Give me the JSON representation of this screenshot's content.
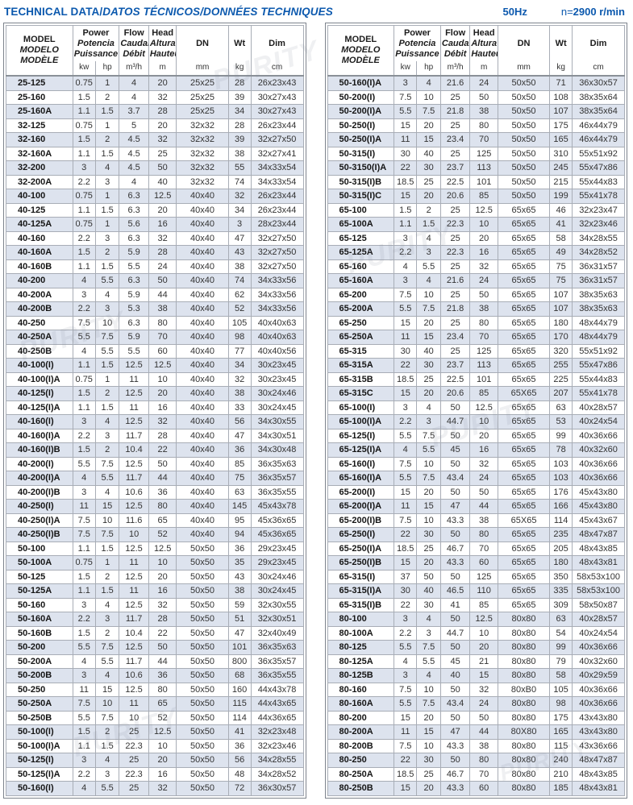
{
  "header": {
    "title_plain": "TECHNICAL DATA/",
    "title_italic": "DATOS TÉCNICOS/DONNÉES TECHNIQUES",
    "frequency": "50Hz",
    "speed_prefix": "n=",
    "speed_value": "2900 r/min"
  },
  "colors": {
    "accent": "#0c59ae",
    "stripe": "#dde3ee",
    "border": "#a8adb6",
    "text": "#333333"
  },
  "watermark_text": "PURITY",
  "columns": {
    "model": [
      "MODEL",
      "MODELO",
      "MODÈLE"
    ],
    "power": [
      "Power",
      "Potencia",
      "Puissance"
    ],
    "flow": [
      "Flow",
      "Caudal",
      "Débit"
    ],
    "head": [
      "Head",
      "Altura",
      "Hauteur"
    ],
    "dn": "DN",
    "wt": "Wt",
    "dim": "Dim",
    "units": {
      "kw": "kw",
      "hp": "hp",
      "flow": "m³/h",
      "head": "m",
      "dn": "mm",
      "wt": "kg",
      "dim": "cm"
    }
  },
  "tables": {
    "left": {
      "rows": [
        [
          "25-125",
          "0.75",
          "1",
          "4",
          "20",
          "25x25",
          "28",
          "26x23x43"
        ],
        [
          "25-160",
          "1.5",
          "2",
          "4",
          "32",
          "25x25",
          "39",
          "30x27x43"
        ],
        [
          "25-160A",
          "1.1",
          "1.5",
          "3.7",
          "28",
          "25x25",
          "34",
          "30x27x43"
        ],
        [
          "32-125",
          "0.75",
          "1",
          "5",
          "20",
          "32x32",
          "28",
          "26x23x44"
        ],
        [
          "32-160",
          "1.5",
          "2",
          "4.5",
          "32",
          "32x32",
          "39",
          "32x27x50"
        ],
        [
          "32-160A",
          "1.1",
          "1.5",
          "4.5",
          "25",
          "32x32",
          "38",
          "32x27x41"
        ],
        [
          "32-200",
          "3",
          "4",
          "4.5",
          "50",
          "32x32",
          "55",
          "34x33x54"
        ],
        [
          "32-200A",
          "2.2",
          "3",
          "4",
          "40",
          "32x32",
          "74",
          "34x33x54"
        ],
        [
          "40-100",
          "0.75",
          "1",
          "6.3",
          "12.5",
          "40x40",
          "32",
          "26x23x44"
        ],
        [
          "40-125",
          "1.1",
          "1.5",
          "6.3",
          "20",
          "40x40",
          "34",
          "26x23x44"
        ],
        [
          "40-125A",
          "0.75",
          "1",
          "5.6",
          "16",
          "40x40",
          "3",
          "28x23x44"
        ],
        [
          "40-160",
          "2.2",
          "3",
          "6.3",
          "32",
          "40x40",
          "47",
          "32x27x50"
        ],
        [
          "40-160A",
          "1.5",
          "2",
          "5.9",
          "28",
          "40x40",
          "43",
          "32x27x50"
        ],
        [
          "40-160B",
          "1.1",
          "1.5",
          "5.5",
          "24",
          "40x40",
          "38",
          "32x27x50"
        ],
        [
          "40-200",
          "4",
          "5.5",
          "6.3",
          "50",
          "40x40",
          "74",
          "34x33x56"
        ],
        [
          "40-200A",
          "3",
          "4",
          "5.9",
          "44",
          "40x40",
          "62",
          "34x33x56"
        ],
        [
          "40-200B",
          "2.2",
          "3",
          "5.3",
          "38",
          "40x40",
          "52",
          "34x33x56"
        ],
        [
          "40-250",
          "7.5",
          "10",
          "6.3",
          "80",
          "40x40",
          "105",
          "40x40x63"
        ],
        [
          "40-250A",
          "5.5",
          "7.5",
          "5.9",
          "70",
          "40x40",
          "98",
          "40x40x63"
        ],
        [
          "40-250B",
          "4",
          "5.5",
          "5.5",
          "60",
          "40x40",
          "77",
          "40x40x56"
        ],
        [
          "40-100(I)",
          "1.1",
          "1.5",
          "12.5",
          "12.5",
          "40x40",
          "34",
          "30x23x45"
        ],
        [
          "40-100(I)A",
          "0.75",
          "1",
          "11",
          "10",
          "40x40",
          "32",
          "30x23x45"
        ],
        [
          "40-125(I)",
          "1.5",
          "2",
          "12.5",
          "20",
          "40x40",
          "38",
          "30x24x46"
        ],
        [
          "40-125(I)A",
          "1.1",
          "1.5",
          "11",
          "16",
          "40x40",
          "33",
          "30x24x45"
        ],
        [
          "40-160(I)",
          "3",
          "4",
          "12.5",
          "32",
          "40x40",
          "56",
          "34x30x55"
        ],
        [
          "40-160(I)A",
          "2.2",
          "3",
          "11.7",
          "28",
          "40x40",
          "47",
          "34x30x51"
        ],
        [
          "40-160(I)B",
          "1.5",
          "2",
          "10.4",
          "22",
          "40x40",
          "36",
          "34x30x48"
        ],
        [
          "40-200(I)",
          "5.5",
          "7.5",
          "12.5",
          "50",
          "40x40",
          "85",
          "36x35x63"
        ],
        [
          "40-200(I)A",
          "4",
          "5.5",
          "11.7",
          "44",
          "40x40",
          "75",
          "36x35x57"
        ],
        [
          "40-200(I)B",
          "3",
          "4",
          "10.6",
          "36",
          "40x40",
          "63",
          "36x35x55"
        ],
        [
          "40-250(I)",
          "11",
          "15",
          "12.5",
          "80",
          "40x40",
          "145",
          "45x43x78"
        ],
        [
          "40-250(I)A",
          "7.5",
          "10",
          "11.6",
          "65",
          "40x40",
          "95",
          "45x36x65"
        ],
        [
          "40-250(I)B",
          "7.5",
          "7.5",
          "10",
          "52",
          "40x40",
          "94",
          "45x36x65"
        ],
        [
          "50-100",
          "1.1",
          "1.5",
          "12.5",
          "12.5",
          "50x50",
          "36",
          "29x23x45"
        ],
        [
          "50-100A",
          "0.75",
          "1",
          "11",
          "10",
          "50x50",
          "35",
          "29x23x45"
        ],
        [
          "50-125",
          "1.5",
          "2",
          "12.5",
          "20",
          "50x50",
          "43",
          "30x24x46"
        ],
        [
          "50-125A",
          "1.1",
          "1.5",
          "11",
          "16",
          "50x50",
          "38",
          "30x24x45"
        ],
        [
          "50-160",
          "3",
          "4",
          "12.5",
          "32",
          "50x50",
          "59",
          "32x30x55"
        ],
        [
          "50-160A",
          "2.2",
          "3",
          "11.7",
          "28",
          "50x50",
          "51",
          "32x30x51"
        ],
        [
          "50-160B",
          "1.5",
          "2",
          "10.4",
          "22",
          "50x50",
          "47",
          "32x40x49"
        ],
        [
          "50-200",
          "5.5",
          "7.5",
          "12.5",
          "50",
          "50x50",
          "101",
          "36x35x63"
        ],
        [
          "50-200A",
          "4",
          "5.5",
          "11.7",
          "44",
          "50x50",
          "800",
          "36x35x57"
        ],
        [
          "50-200B",
          "3",
          "4",
          "10.6",
          "36",
          "50x50",
          "68",
          "36x35x55"
        ],
        [
          "50-250",
          "11",
          "15",
          "12.5",
          "80",
          "50x50",
          "160",
          "44x43x78"
        ],
        [
          "50-250A",
          "7.5",
          "10",
          "11",
          "65",
          "50x50",
          "115",
          "44x43x65"
        ],
        [
          "50-250B",
          "5.5",
          "7.5",
          "10",
          "52",
          "50x50",
          "114",
          "44x36x65"
        ],
        [
          "50-100(I)",
          "1.5",
          "2",
          "25",
          "12.5",
          "50x50",
          "41",
          "32x23x48"
        ],
        [
          "50-100(I)A",
          "1.1",
          "1.5",
          "22.3",
          "10",
          "50x50",
          "36",
          "32x23x46"
        ],
        [
          "50-125(I)",
          "3",
          "4",
          "25",
          "20",
          "50x50",
          "56",
          "34x28x55"
        ],
        [
          "50-125(I)A",
          "2.2",
          "3",
          "22.3",
          "16",
          "50x50",
          "48",
          "34x28x52"
        ],
        [
          "50-160(I)",
          "4",
          "5.5",
          "25",
          "32",
          "50x50",
          "72",
          "36x30x57"
        ]
      ]
    },
    "right": {
      "rows": [
        [
          "50-160(I)A",
          "3",
          "4",
          "21.6",
          "24",
          "50x50",
          "71",
          "36x30x57"
        ],
        [
          "50-200(I)",
          "7.5",
          "10",
          "25",
          "50",
          "50x50",
          "108",
          "38x35x64"
        ],
        [
          "50-200(I)A",
          "5.5",
          "7.5",
          "21.8",
          "38",
          "50x50",
          "107",
          "38x35x64"
        ],
        [
          "50-250(I)",
          "15",
          "20",
          "25",
          "80",
          "50x50",
          "175",
          "46x44x79"
        ],
        [
          "50-250(I)A",
          "11",
          "15",
          "23.4",
          "70",
          "50x50",
          "165",
          "46x44x79"
        ],
        [
          "50-315(I)",
          "30",
          "40",
          "25",
          "125",
          "50x50",
          "310",
          "55x51x92"
        ],
        [
          "50-3150(I)A",
          "22",
          "30",
          "23.7",
          "113",
          "50x50",
          "245",
          "55x47x86"
        ],
        [
          "50-315(I)B",
          "18.5",
          "25",
          "22.5",
          "101",
          "50x50",
          "215",
          "55x44x83"
        ],
        [
          "50-315(I)C",
          "15",
          "20",
          "20.6",
          "85",
          "50x50",
          "199",
          "55x41x78"
        ],
        [
          "65-100",
          "1.5",
          "2",
          "25",
          "12.5",
          "65x65",
          "46",
          "32x23x47"
        ],
        [
          "65-100A",
          "1.1",
          "1.5",
          "22.3",
          "10",
          "65x65",
          "41",
          "32x23x46"
        ],
        [
          "65-125",
          "3",
          "4",
          "25",
          "20",
          "65x65",
          "58",
          "34x28x55"
        ],
        [
          "65-125A",
          "2.2",
          "3",
          "22.3",
          "16",
          "65x65",
          "49",
          "34x28x52"
        ],
        [
          "65-160",
          "4",
          "5.5",
          "25",
          "32",
          "65x65",
          "75",
          "36x31x57"
        ],
        [
          "65-160A",
          "3",
          "4",
          "21.6",
          "24",
          "65x65",
          "75",
          "36x31x57"
        ],
        [
          "65-200",
          "7.5",
          "10",
          "25",
          "50",
          "65x65",
          "107",
          "38x35x63"
        ],
        [
          "65-200A",
          "5.5",
          "7.5",
          "21.8",
          "38",
          "65x65",
          "107",
          "38x35x63"
        ],
        [
          "65-250",
          "15",
          "20",
          "25",
          "80",
          "65x65",
          "180",
          "48x44x79"
        ],
        [
          "65-250A",
          "11",
          "15",
          "23.4",
          "70",
          "65x65",
          "170",
          "48x44x79"
        ],
        [
          "65-315",
          "30",
          "40",
          "25",
          "125",
          "65x65",
          "320",
          "55x51x92"
        ],
        [
          "65-315A",
          "22",
          "30",
          "23.7",
          "113",
          "65x65",
          "255",
          "55x47x86"
        ],
        [
          "65-315B",
          "18.5",
          "25",
          "22.5",
          "101",
          "65x65",
          "225",
          "55x44x83"
        ],
        [
          "65-315C",
          "15",
          "20",
          "20.6",
          "85",
          "65X65",
          "207",
          "55x41x78"
        ],
        [
          "65-100(I)",
          "3",
          "4",
          "50",
          "12.5",
          "65x65",
          "63",
          "40x28x57"
        ],
        [
          "65-100(I)A",
          "2.2",
          "3",
          "44.7",
          "10",
          "65x65",
          "53",
          "40x24x54"
        ],
        [
          "65-125(I)",
          "5.5",
          "7.5",
          "50",
          "20",
          "65x65",
          "99",
          "40x36x66"
        ],
        [
          "65-125(I)A",
          "4",
          "5.5",
          "45",
          "16",
          "65x65",
          "78",
          "40x32x60"
        ],
        [
          "65-160(I)",
          "7.5",
          "10",
          "50",
          "32",
          "65x65",
          "103",
          "40x36x66"
        ],
        [
          "65-160(I)A",
          "5.5",
          "7.5",
          "43.4",
          "24",
          "65x65",
          "103",
          "40x36x66"
        ],
        [
          "65-200(I)",
          "15",
          "20",
          "50",
          "50",
          "65x65",
          "176",
          "45x43x80"
        ],
        [
          "65-200(I)A",
          "11",
          "15",
          "47",
          "44",
          "65x65",
          "166",
          "45x43x80"
        ],
        [
          "65-200(I)B",
          "7.5",
          "10",
          "43.3",
          "38",
          "65X65",
          "114",
          "45x43x67"
        ],
        [
          "65-250(I)",
          "22",
          "30",
          "50",
          "80",
          "65x65",
          "235",
          "48x47x87"
        ],
        [
          "65-250(I)A",
          "18.5",
          "25",
          "46.7",
          "70",
          "65x65",
          "205",
          "48x43x85"
        ],
        [
          "65-250(I)B",
          "15",
          "20",
          "43.3",
          "60",
          "65x65",
          "180",
          "48x43x81"
        ],
        [
          "65-315(I)",
          "37",
          "50",
          "50",
          "125",
          "65x65",
          "350",
          "58x53x100"
        ],
        [
          "65-315(I)A",
          "30",
          "40",
          "46.5",
          "110",
          "65x65",
          "335",
          "58x53x100"
        ],
        [
          "65-315(I)B",
          "22",
          "30",
          "41",
          "85",
          "65x65",
          "309",
          "58x50x87"
        ],
        [
          "80-100",
          "3",
          "4",
          "50",
          "12.5",
          "80x80",
          "63",
          "40x28x57"
        ],
        [
          "80-100A",
          "2.2",
          "3",
          "44.7",
          "10",
          "80x80",
          "54",
          "40x24x54"
        ],
        [
          "80-125",
          "5.5",
          "7.5",
          "50",
          "20",
          "80x80",
          "99",
          "40x36x66"
        ],
        [
          "80-125A",
          "4",
          "5.5",
          "45",
          "21",
          "80x80",
          "79",
          "40x32x60"
        ],
        [
          "80-125B",
          "3",
          "4",
          "40",
          "15",
          "80x80",
          "58",
          "40x29x59"
        ],
        [
          "80-160",
          "7.5",
          "10",
          "50",
          "32",
          "80xB0",
          "105",
          "40x36x66"
        ],
        [
          "80-160A",
          "5.5",
          "7.5",
          "43.4",
          "24",
          "80x80",
          "98",
          "40x36x66"
        ],
        [
          "80-200",
          "15",
          "20",
          "50",
          "50",
          "80x80",
          "175",
          "43x43x80"
        ],
        [
          "80-200A",
          "11",
          "15",
          "47",
          "44",
          "80X80",
          "165",
          "43x43x80"
        ],
        [
          "80-200B",
          "7.5",
          "10",
          "43.3",
          "38",
          "80x80",
          "115",
          "43x36x66"
        ],
        [
          "80-250",
          "22",
          "30",
          "50",
          "80",
          "80x80",
          "240",
          "48x47x87"
        ],
        [
          "80-250A",
          "18.5",
          "25",
          "46.7",
          "70",
          "80x80",
          "210",
          "48x43x85"
        ],
        [
          "80-250B",
          "15",
          "20",
          "43.3",
          "60",
          "80x80",
          "185",
          "48x43x81"
        ]
      ]
    }
  }
}
